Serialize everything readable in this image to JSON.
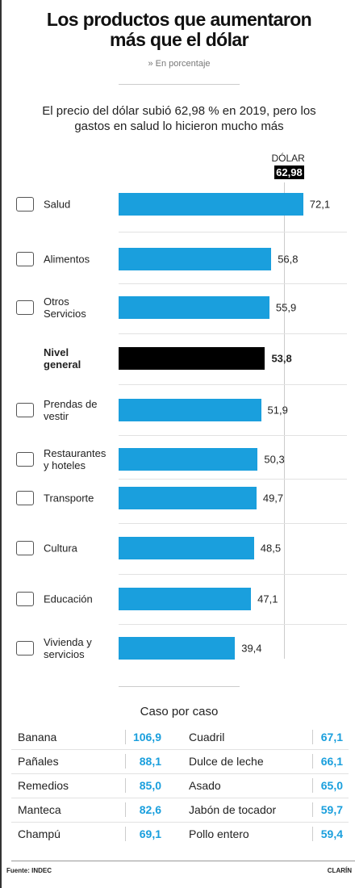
{
  "chart_data": {
    "type": "bar",
    "orientation": "horizontal",
    "title": "Los productos que aumentaron más que el dólar",
    "subtitle": "» En porcentaje",
    "description": "El precio del dólar subió 62,98 % en 2019, pero los gastos en salud lo hicieron mucho más",
    "categories": [
      "Salud",
      "Alimentos",
      "Otros Servicios",
      "Nivel general",
      "Prendas de vestir",
      "Restaurantes y hoteles",
      "Transporte",
      "Cultura",
      "Educación",
      "Vivienda y servicios"
    ],
    "values": [
      72.1,
      56.8,
      55.9,
      53.8,
      51.9,
      50.3,
      49.7,
      48.5,
      47.1,
      39.4
    ],
    "value_labels": [
      "72,1",
      "56,8",
      "55,9",
      "53,8",
      "51,9",
      "50,3",
      "49,7",
      "48,5",
      "47,1",
      "39,4"
    ],
    "colors": [
      "#1a9fdd",
      "#1a9fdd",
      "#1a9fdd",
      "#000000",
      "#1a9fdd",
      "#1a9fdd",
      "#1a9fdd",
      "#1a9fdd",
      "#1a9fdd",
      "#1a9fdd"
    ],
    "xlim": [
      -16.4,
      78
    ],
    "reference": {
      "label": "DÓLAR",
      "value": 62.98,
      "value_label": "62,98"
    }
  },
  "table": {
    "title": "Caso por caso",
    "rows": [
      [
        "Banana",
        "106,9",
        "Cuadril",
        "67,1"
      ],
      [
        "Pañales",
        "88,1",
        "Dulce de leche",
        "66,1"
      ],
      [
        "Remedios",
        "85,0",
        "Asado",
        "65,0"
      ],
      [
        "Manteca",
        "82,6",
        "Jabón de tocador",
        "59,7"
      ],
      [
        "Champú",
        "69,1",
        "Pollo entero",
        "59,4"
      ]
    ]
  },
  "footer": {
    "source": "Fuente: INDEC",
    "brand": "CLARÍN"
  }
}
